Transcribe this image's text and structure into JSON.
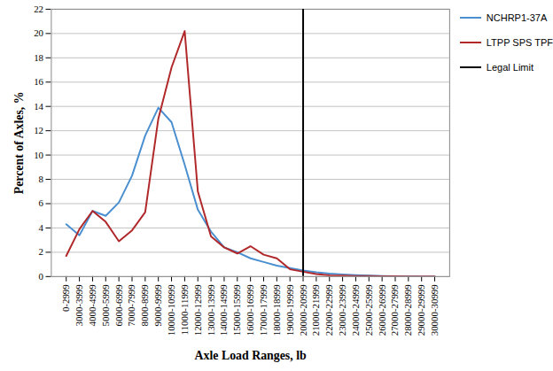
{
  "chart_data": {
    "type": "line",
    "x_label": "Axle Load Ranges, lb",
    "y_label": "Percent of Axles, %",
    "categories": [
      "0-2999",
      "3000-3999",
      "4000-4999",
      "5000-5999",
      "6000-6999",
      "7000-7999",
      "8000-8999",
      "9000-9999",
      "10000-10999",
      "11000-11999",
      "12000-12999",
      "13000-13999",
      "14000-14999",
      "15000-15999",
      "16000-16999",
      "17000-17999",
      "18000-18999",
      "19000-19999",
      "20000-20999",
      "21000-21999",
      "22000-22999",
      "23000-23999",
      "24000-24999",
      "25000-25999",
      "26000-26999",
      "27000-27999",
      "28000-28999",
      "29000-29999",
      "30000-30999"
    ],
    "series": [
      {
        "name": "NCHRP1-37A",
        "color": "#4a8fd0",
        "values": [
          4.3,
          3.4,
          5.4,
          5.0,
          6.1,
          8.3,
          11.6,
          13.9,
          12.7,
          9.2,
          5.5,
          3.7,
          2.4,
          2.0,
          1.5,
          1.2,
          0.9,
          0.7,
          0.5,
          0.35,
          0.25,
          0.18,
          0.12,
          0.08,
          0.05,
          0.03,
          0.02,
          0.01,
          0.01
        ]
      },
      {
        "name": "LTPP SPS TPF",
        "color": "#b0282a",
        "values": [
          1.7,
          3.9,
          5.4,
          4.5,
          2.9,
          3.8,
          5.3,
          13.0,
          17.2,
          20.2,
          7.0,
          3.3,
          2.4,
          1.9,
          2.5,
          1.8,
          1.5,
          0.6,
          0.4,
          0.2,
          0.1,
          0.08,
          0.05,
          0.04,
          0.03,
          0.02,
          0.01,
          0.01,
          0.01
        ]
      }
    ],
    "vlines": [
      {
        "name": "Legal Limit",
        "x": "20000-20999",
        "color": "#000000"
      }
    ],
    "ylim": [
      0,
      22
    ],
    "yticks": [
      0,
      2,
      4,
      6,
      8,
      10,
      12,
      14,
      16,
      18,
      20,
      22
    ],
    "grid": true,
    "legend": "right"
  }
}
